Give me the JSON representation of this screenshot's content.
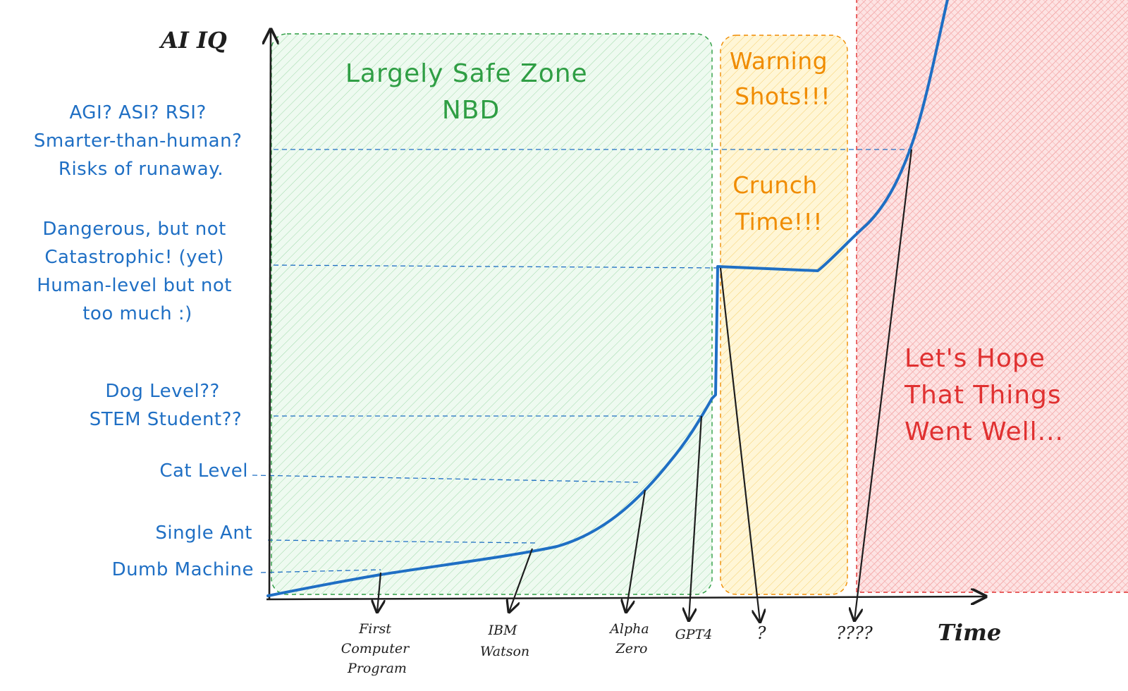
{
  "axes": {
    "y_label": "AI IQ",
    "x_label": "Time"
  },
  "y_levels": [
    {
      "lines": [
        "AGI? ASI? RSI?",
        "Smarter-than-human?",
        "Risks of runaway."
      ]
    },
    {
      "lines": [
        "Dangerous, but not",
        "Catastrophic! (yet)",
        "Human-level but not",
        "too much :)"
      ]
    },
    {
      "lines": [
        "Dog Level??",
        "STEM Student??"
      ]
    },
    {
      "lines": [
        "Cat Level"
      ]
    },
    {
      "lines": [
        "Single Ant"
      ]
    },
    {
      "lines": [
        "Dumb Machine"
      ]
    }
  ],
  "x_milestones": [
    {
      "lines": [
        "First",
        "Computer",
        "Program"
      ]
    },
    {
      "lines": [
        "IBM",
        "Watson"
      ]
    },
    {
      "lines": [
        "Alpha",
        "Zero"
      ]
    },
    {
      "lines": [
        "GPT4"
      ]
    },
    {
      "lines": [
        "?"
      ]
    },
    {
      "lines": [
        "????"
      ]
    }
  ],
  "zones": {
    "safe": {
      "lines": [
        "Largely Safe Zone",
        "NBD"
      ],
      "color": "#2f9e44"
    },
    "warning": {
      "lines": [
        "Warning",
        "Shots!!!"
      ],
      "color": "#f08c00"
    },
    "crunch": {
      "lines": [
        "Crunch",
        "Time!!!"
      ],
      "color": "#f08c00"
    },
    "hope": {
      "lines": [
        "Let's Hope",
        "That Things",
        "Went Well..."
      ],
      "color": "#e03131"
    }
  },
  "colors": {
    "curve": "#1f6fc4",
    "axis": "#1e1e1e",
    "level_text": "#1f6fc4"
  }
}
